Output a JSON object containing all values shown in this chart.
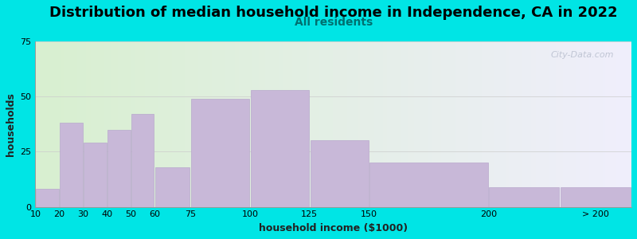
{
  "title": "Distribution of median household income in Independence, CA in 2022",
  "subtitle": "All residents",
  "xlabel": "household income ($1000)",
  "ylabel": "households",
  "bar_lefts": [
    10,
    20,
    30,
    40,
    50,
    60,
    75,
    100,
    125,
    150,
    200,
    230
  ],
  "bar_widths": [
    10,
    10,
    10,
    10,
    10,
    15,
    25,
    25,
    25,
    50,
    30,
    30
  ],
  "bar_values": [
    8,
    38,
    29,
    35,
    42,
    18,
    49,
    53,
    30,
    20,
    9,
    9
  ],
  "xtick_positions": [
    10,
    20,
    30,
    40,
    50,
    60,
    75,
    100,
    125,
    150,
    200,
    245
  ],
  "xtick_labels": [
    "10",
    "20",
    "30",
    "40",
    "50",
    "60",
    "75",
    "100",
    "125",
    "150",
    "200",
    "> 200"
  ],
  "bar_color": "#c8b8d8",
  "bar_edge_color": "#b8a8cc",
  "ylim": [
    0,
    75
  ],
  "xlim": [
    10,
    260
  ],
  "yticks": [
    0,
    25,
    50,
    75
  ],
  "background_outer": "#00e5e5",
  "background_plot_left": "#d8f0d0",
  "background_plot_right": "#f0eefc",
  "title_fontsize": 13,
  "subtitle_fontsize": 10,
  "subtitle_color": "#007070",
  "axis_label_fontsize": 9,
  "tick_label_fontsize": 8,
  "watermark_text": "City-Data.com",
  "watermark_color": "#b8bece"
}
